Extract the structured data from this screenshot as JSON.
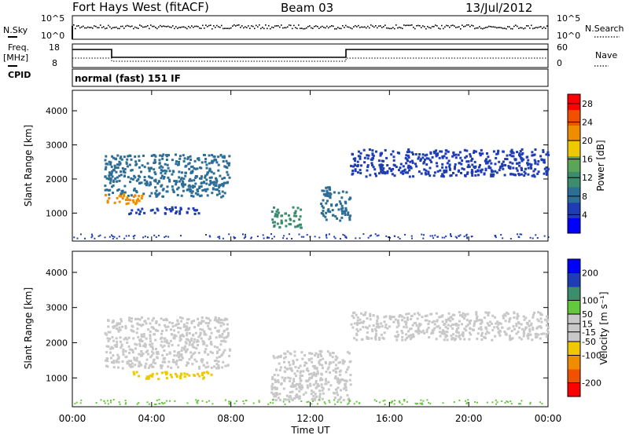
{
  "header": {
    "title": "Fort Hays West (fitACF)",
    "beam": "Beam 03",
    "date": "13/Jul/2012"
  },
  "status_panel": {
    "nsky_label": "N.Sky",
    "nsearch_label": "N.Search",
    "freq_label": "Freq.",
    "freq_unit": "[MHz]",
    "nave_label": "Nave",
    "cpid_label": "CPID",
    "cpid_text": "normal (fast) 151 IF",
    "noise_left_ticks": [
      "10^5",
      "10^0"
    ],
    "noise_right_ticks": [
      "10^5",
      "10^0"
    ],
    "freq_ticks": [
      "18",
      "8"
    ],
    "nave_ticks": [
      "60",
      "0"
    ]
  },
  "colors": {
    "power_scale": [
      "#0000ff",
      "#1e3cb4",
      "#2d6e96",
      "#3c8c6e",
      "#5aa55a",
      "#f0c800",
      "#f08c00",
      "#f05000",
      "#ff0000"
    ],
    "velocity_scale": [
      "#ff0000",
      "#f05000",
      "#f08c00",
      "#f0c800",
      "#c8c8c8",
      "#c8c8c8",
      "#64c83c",
      "#3c8c6e",
      "#1e3cb4",
      "#0000ff"
    ]
  },
  "chart_data": [
    {
      "type": "heatmap",
      "name": "power",
      "xlabel": "",
      "ylabel": "Slant Range [km]",
      "xlim_hours": [
        0,
        24
      ],
      "ylim": [
        180,
        4600
      ],
      "yticks": [
        "1000",
        "2000",
        "3000",
        "4000"
      ],
      "colorbar": {
        "label": "Power [dB]",
        "ticks": [
          "4",
          "8",
          "12",
          "16",
          "20",
          "24",
          "28"
        ],
        "range": [
          0,
          30
        ]
      },
      "echo_regions": [
        {
          "t_start": 1.6,
          "t_end": 7.9,
          "r_start": 1500,
          "r_end": 2750,
          "power": 9
        },
        {
          "t_start": 1.6,
          "t_end": 3.5,
          "r_start": 1300,
          "r_end": 1600,
          "power": 20
        },
        {
          "t_start": 2.8,
          "t_end": 6.5,
          "r_start": 1000,
          "r_end": 1200,
          "power": 6
        },
        {
          "t_start": 10.0,
          "t_end": 11.5,
          "r_start": 600,
          "r_end": 1200,
          "power": 10
        },
        {
          "t_start": 12.5,
          "t_end": 14.0,
          "r_start": 800,
          "r_end": 1800,
          "power": 8
        },
        {
          "t_start": 14.0,
          "t_end": 24.0,
          "r_start": 2100,
          "r_end": 2900,
          "power": 6
        }
      ]
    },
    {
      "type": "heatmap",
      "name": "velocity",
      "xlabel": "Time UT",
      "ylabel": "Slant Range [km]",
      "xlim_hours": [
        0,
        24
      ],
      "ylim": [
        180,
        4600
      ],
      "xticks": [
        "00:00",
        "04:00",
        "08:00",
        "12:00",
        "16:00",
        "20:00",
        "00:00"
      ],
      "yticks": [
        "1000",
        "2000",
        "3000",
        "4000"
      ],
      "colorbar": {
        "label": "Velocity [m s⁻¹]",
        "ticks": [
          "200",
          "100",
          "50",
          "15",
          "-15",
          "-50",
          "-100",
          "-200"
        ],
        "range": [
          -250,
          250
        ]
      },
      "echo_regions": [
        {
          "t_start": 1.6,
          "t_end": 7.9,
          "r_start": 1300,
          "r_end": 2750,
          "velocity": 0
        },
        {
          "t_start": 3.0,
          "t_end": 7.0,
          "r_start": 1000,
          "r_end": 1200,
          "velocity": -60
        },
        {
          "t_start": 10.0,
          "t_end": 14.0,
          "r_start": 400,
          "r_end": 1800,
          "velocity": 0
        },
        {
          "t_start": 14.0,
          "t_end": 24.0,
          "r_start": 2100,
          "r_end": 2900,
          "velocity": 0
        }
      ]
    }
  ]
}
